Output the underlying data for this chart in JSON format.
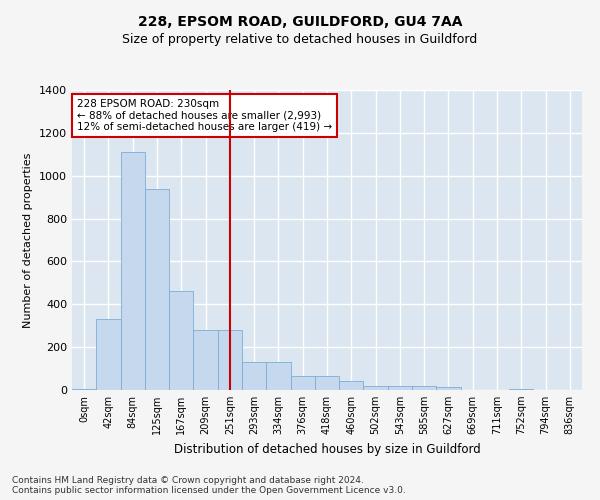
{
  "title": "228, EPSOM ROAD, GUILDFORD, GU4 7AA",
  "subtitle": "Size of property relative to detached houses in Guildford",
  "xlabel": "Distribution of detached houses by size in Guildford",
  "ylabel": "Number of detached properties",
  "categories": [
    "0sqm",
    "42sqm",
    "84sqm",
    "125sqm",
    "167sqm",
    "209sqm",
    "251sqm",
    "293sqm",
    "334sqm",
    "376sqm",
    "418sqm",
    "460sqm",
    "502sqm",
    "543sqm",
    "585sqm",
    "627sqm",
    "669sqm",
    "711sqm",
    "752sqm",
    "794sqm",
    "836sqm"
  ],
  "bar_heights": [
    5,
    330,
    1110,
    940,
    460,
    280,
    280,
    130,
    130,
    65,
    65,
    40,
    20,
    20,
    20,
    15,
    0,
    0,
    5,
    0,
    0
  ],
  "bar_color": "#c5d8ee",
  "bar_edge_color": "#7aadd4",
  "plot_bg_color": "#dce6f0",
  "grid_color": "#ffffff",
  "vline_x": 6.0,
  "vline_color": "#cc0000",
  "annotation_text": "228 EPSOM ROAD: 230sqm\n← 88% of detached houses are smaller (2,993)\n12% of semi-detached houses are larger (419) →",
  "annotation_box_color": "#ffffff",
  "annotation_box_edge": "#cc0000",
  "ylim": [
    0,
    1400
  ],
  "yticks": [
    0,
    200,
    400,
    600,
    800,
    1000,
    1200,
    1400
  ],
  "fig_bg_color": "#f5f5f5",
  "title_fontsize": 10,
  "subtitle_fontsize": 9,
  "footer_line1": "Contains HM Land Registry data © Crown copyright and database right 2024.",
  "footer_line2": "Contains public sector information licensed under the Open Government Licence v3.0."
}
